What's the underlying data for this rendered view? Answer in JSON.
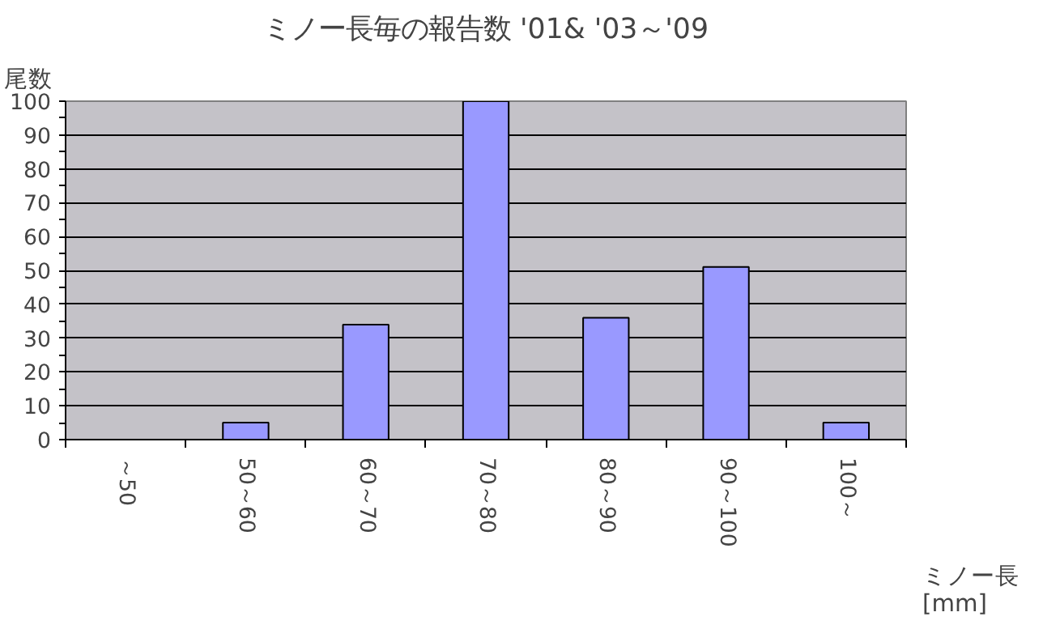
{
  "chart_data": {
    "type": "bar",
    "title": "ミノー長毎の報告数 '01& '03～'09",
    "ylabel": "尾数",
    "xlabel": "ミノー長\n[mm]",
    "categories": [
      "～50",
      "50～60",
      "60～70",
      "70～80",
      "80～90",
      "90～100",
      "100～"
    ],
    "values": [
      0,
      5,
      34,
      100,
      36,
      51,
      5
    ],
    "color": "#9999ff",
    "ylim": [
      0,
      100
    ],
    "yticks": [
      0,
      10,
      20,
      30,
      40,
      50,
      60,
      70,
      80,
      90,
      100
    ],
    "grid": "y"
  }
}
